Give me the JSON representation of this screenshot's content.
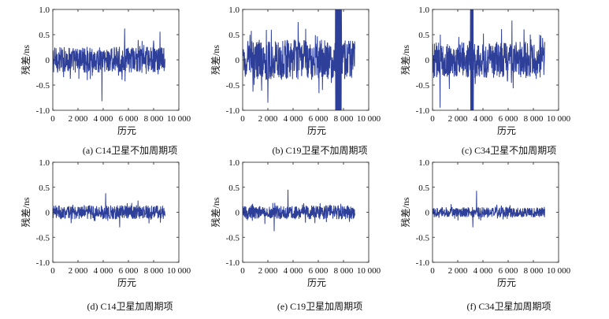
{
  "figure": {
    "captions": [
      "(a) C14卫星不加周期项",
      "(b) C19卫星不加周期项",
      "(c) C34卫星不加周期项",
      "(d) C14卫星加周期项",
      "(e) C19卫星加周期项",
      "(f) C34卫星加周期项"
    ]
  },
  "colors": {
    "series": "#2e3f9a",
    "axis": "#222222"
  },
  "chart_data": [
    {
      "type": "line",
      "xlabel": "历元",
      "ylabel": "残差/ns",
      "xlim": [
        0,
        10000
      ],
      "ylim": [
        -1.0,
        1.0
      ],
      "xticks": [
        "0",
        "2 000",
        "4 000",
        "6 000",
        "8 000",
        "10 000"
      ],
      "yticks": [
        "-1.0",
        "-0.5",
        "0",
        "0.5",
        "1.0"
      ],
      "grid": false,
      "x_range": [
        0,
        8900
      ],
      "noise_amplitude": 0.26,
      "spikes": [
        {
          "x": 3900,
          "y": -0.82
        },
        {
          "x": 5700,
          "y": 0.62
        },
        {
          "x": 8500,
          "y": 0.56
        }
      ]
    },
    {
      "type": "line",
      "xlabel": "历元",
      "ylabel": "残差/ns",
      "xlim": [
        0,
        10000
      ],
      "ylim": [
        -1.0,
        1.0
      ],
      "xticks": [
        "0",
        "2 000",
        "4 000",
        "6 000",
        "8 000",
        "10 000"
      ],
      "yticks": [
        "-1.0",
        "-0.5",
        "0",
        "0.5",
        "1.0"
      ],
      "grid": false,
      "x_range": [
        0,
        8900
      ],
      "noise_amplitude": 0.4,
      "burst": {
        "x_start": 7350,
        "x_end": 7850,
        "low": -1.0,
        "high": 1.0
      },
      "spikes": [
        {
          "x": 2000,
          "y": -0.85
        },
        {
          "x": 4400,
          "y": 0.75
        }
      ]
    },
    {
      "type": "line",
      "xlabel": "历元",
      "ylabel": "残差/ns",
      "xlim": [
        0,
        10000
      ],
      "ylim": [
        -1.0,
        1.0
      ],
      "xticks": [
        "0",
        "2 000",
        "4 000",
        "6 000",
        "8 000",
        "10 000"
      ],
      "yticks": [
        "-1.0",
        "-0.5",
        "0",
        "0.5",
        "1.0"
      ],
      "grid": false,
      "x_range": [
        0,
        8900
      ],
      "noise_amplitude": 0.36,
      "burst": {
        "x_start": 3000,
        "x_end": 3250,
        "low": -1.0,
        "high": 1.0
      },
      "spikes": [
        {
          "x": 600,
          "y": -0.95
        },
        {
          "x": 6300,
          "y": 0.78
        }
      ]
    },
    {
      "type": "line",
      "xlabel": "历元",
      "ylabel": "残差/ns",
      "xlim": [
        0,
        10000
      ],
      "ylim": [
        -1.0,
        1.0
      ],
      "xticks": [
        "0",
        "2 000",
        "4 000",
        "6 000",
        "8 000",
        "10 000"
      ],
      "yticks": [
        "-1.0",
        "-0.5",
        "0",
        "0.5",
        "1.0"
      ],
      "grid": false,
      "x_range": [
        0,
        8900
      ],
      "noise_amplitude": 0.14,
      "spikes": [
        {
          "x": 4200,
          "y": 0.38
        },
        {
          "x": 5300,
          "y": -0.3
        }
      ]
    },
    {
      "type": "line",
      "xlabel": "历元",
      "ylabel": "残差/ns",
      "xlim": [
        0,
        10000
      ],
      "ylim": [
        -1.0,
        1.0
      ],
      "xticks": [
        "0",
        "2 000",
        "4 000",
        "6 000",
        "8 000",
        "10 000"
      ],
      "yticks": [
        "-1.0",
        "-0.5",
        "0",
        "0.5",
        "1.0"
      ],
      "grid": false,
      "x_range": [
        0,
        8900
      ],
      "noise_amplitude": 0.14,
      "spikes": [
        {
          "x": 3600,
          "y": 0.45
        },
        {
          "x": 2500,
          "y": -0.38
        }
      ]
    },
    {
      "type": "line",
      "xlabel": "历元",
      "ylabel": "残差/ns",
      "xlim": [
        0,
        10000
      ],
      "ylim": [
        -1.0,
        1.0
      ],
      "xticks": [
        "0",
        "2 000",
        "4 000",
        "6 000",
        "8 000",
        "10 000"
      ],
      "yticks": [
        "-1.0",
        "-0.5",
        "0",
        "0.5",
        "1.0"
      ],
      "grid": false,
      "x_range": [
        0,
        8900
      ],
      "noise_amplitude": 0.1,
      "spikes": [
        {
          "x": 3500,
          "y": 0.43
        },
        {
          "x": 3200,
          "y": -0.3
        }
      ]
    }
  ]
}
